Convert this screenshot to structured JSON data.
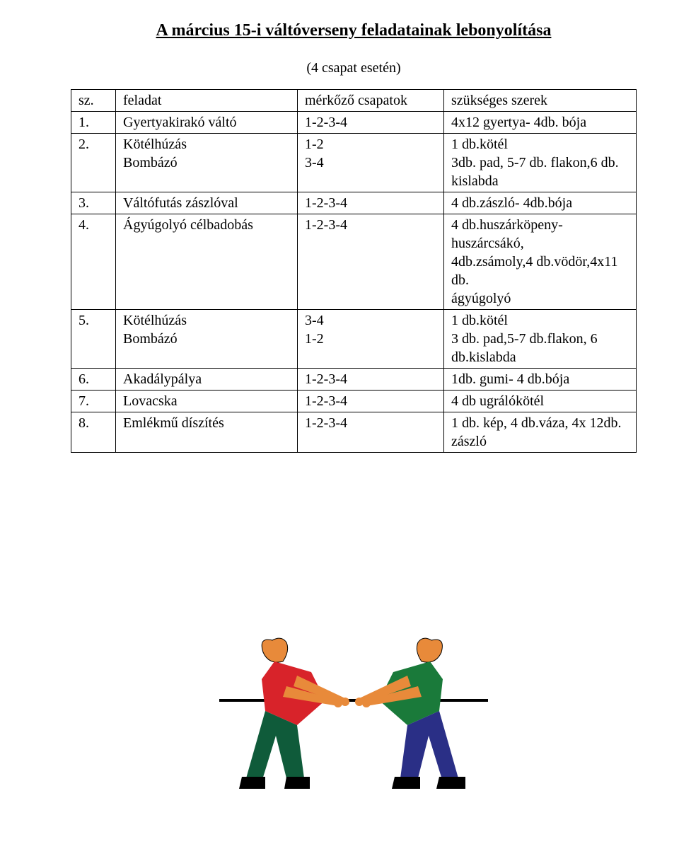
{
  "title": "A március 15-i váltóverseny feladatainak lebonyolítása",
  "subtitle": "(4 csapat esetén)",
  "head": {
    "sz": "sz.",
    "feladat": "feladat",
    "merkozo": "mérkőző csapatok",
    "szerek": "szükséges szerek"
  },
  "rows": [
    {
      "sz": "1.",
      "feladat": "Gyertyakirakó váltó",
      "merkozo": "1-2-3-4",
      "szerek": "4x12 gyertya- 4db. bója"
    },
    {
      "sz": "2.",
      "feladat_lines": [
        "Kötélhúzás",
        "Bombázó"
      ],
      "merkozo_lines": [
        "1-2",
        "3-4"
      ],
      "szerek_lines": [
        "1 db.kötél",
        "3db. pad, 5-7 db. flakon,6 db. kislabda"
      ]
    },
    {
      "sz": "3.",
      "feladat": "Váltófutás zászlóval",
      "merkozo": "1-2-3-4",
      "szerek": "4 db.zászló- 4db.bója"
    },
    {
      "sz": "4.",
      "feladat": "Ágyúgolyó célbadobás",
      "merkozo": "1-2-3-4",
      "szerek_lines": [
        "4 db.huszárköpeny-huszárcsákó,",
        "4db.zsámoly,4 db.vödör,4x11 db.",
        "ágyúgolyó"
      ]
    },
    {
      "sz": "5.",
      "feladat_lines": [
        "Kötélhúzás",
        "Bombázó"
      ],
      "merkozo_lines": [
        "3-4",
        "1-2"
      ],
      "szerek_lines": [
        "1 db.kötél",
        "3 db. pad,5-7 db.flakon, 6 db.kislabda"
      ]
    },
    {
      "sz": "6.",
      "feladat": "Akadálypálya",
      "merkozo": "1-2-3-4",
      "szerek": "1db. gumi- 4 db.bója"
    },
    {
      "sz": "7.",
      "feladat": "Lovacska",
      "merkozo": "1-2-3-4",
      "szerek": "4 db ugrálókötél"
    },
    {
      "sz": "8.",
      "feladat": "Emlékmű díszítés",
      "merkozo": "1-2-3-4",
      "szerek_lines": [
        "1 db. kép, 4 db.váza, 4x 12db.",
        "zászló"
      ]
    }
  ],
  "illustration": {
    "left_shirt": "#d8232a",
    "left_pants": "#0f5b3a",
    "left_skin": "#e88a3a",
    "left_shoes": "#000000",
    "right_shirt": "#1a7a3a",
    "right_pants": "#2a2f86",
    "right_skin": "#e88a3a",
    "right_shoes": "#000000",
    "rope": "#000000",
    "bg": "#ffffff"
  }
}
